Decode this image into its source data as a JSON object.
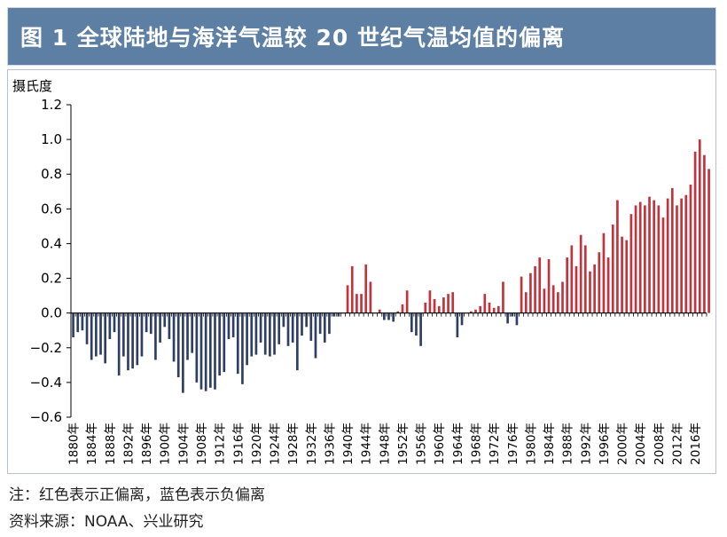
{
  "figure": {
    "title": "图 1   全球陆地与海洋气温较 20 世纪气温均值的偏离",
    "note": "注：红色表示正偏离，蓝色表示负偏离",
    "source": "资料来源：NOAA、兴业研究"
  },
  "colors": {
    "positive": "#c0353d",
    "negative": "#2f3f63",
    "axis": "#000000",
    "header": "#5d7fa3"
  },
  "chart_data": {
    "type": "bar",
    "title": "全球陆地与海洋气温较 20 世纪气温均值的偏离",
    "ylabel": "摄氏度",
    "xlabel": "",
    "ylim": [
      -0.6,
      1.2
    ],
    "yticks": [
      1.2,
      1.0,
      0.8,
      0.6,
      0.4,
      0.2,
      0.0,
      -0.2,
      -0.4,
      -0.6
    ],
    "ytick_labels": [
      "1.2",
      "1.0",
      "0.8",
      "0.6",
      "0.4",
      "0.2",
      "0.0",
      "−0.2",
      "−0.4",
      "−0.6"
    ],
    "xtick_labels": [
      "1880年",
      "1884年",
      "1888年",
      "1892年",
      "1896年",
      "1900年",
      "1904年",
      "1908年",
      "1912年",
      "1916年",
      "1920年",
      "1924年",
      "1928年",
      "1932年",
      "1936年",
      "1940年",
      "1944年",
      "1948年",
      "1952年",
      "1956年",
      "1960年",
      "1964年",
      "1968年",
      "1972年",
      "1976年",
      "1980年",
      "1984年",
      "1988年",
      "1992年",
      "1996年",
      "2000年",
      "2004年",
      "2008年",
      "2012年",
      "2016年"
    ],
    "start_year": 1880,
    "end_year": 2018,
    "values": [
      -0.14,
      -0.11,
      -0.1,
      -0.18,
      -0.27,
      -0.25,
      -0.24,
      -0.29,
      -0.15,
      -0.11,
      -0.36,
      -0.25,
      -0.33,
      -0.32,
      -0.3,
      -0.25,
      -0.11,
      -0.12,
      -0.27,
      -0.17,
      -0.08,
      -0.15,
      -0.28,
      -0.37,
      -0.46,
      -0.27,
      -0.23,
      -0.4,
      -0.44,
      -0.45,
      -0.43,
      -0.44,
      -0.36,
      -0.34,
      -0.15,
      -0.14,
      -0.35,
      -0.41,
      -0.3,
      -0.25,
      -0.24,
      -0.17,
      -0.24,
      -0.25,
      -0.24,
      -0.18,
      -0.08,
      -0.19,
      -0.17,
      -0.33,
      -0.13,
      -0.08,
      -0.16,
      -0.26,
      -0.12,
      -0.17,
      -0.12,
      -0.02,
      -0.02,
      0.0,
      0.16,
      0.27,
      0.11,
      0.11,
      0.28,
      0.18,
      0.0,
      0.02,
      -0.04,
      -0.04,
      -0.05,
      0.01,
      0.05,
      0.13,
      -0.11,
      -0.13,
      -0.19,
      0.06,
      0.13,
      0.08,
      0.04,
      0.09,
      0.11,
      0.12,
      -0.14,
      -0.07,
      0.0,
      0.01,
      0.02,
      0.04,
      0.11,
      0.06,
      0.03,
      0.04,
      0.18,
      -0.06,
      -0.02,
      -0.07,
      0.21,
      0.12,
      0.23,
      0.27,
      0.32,
      0.14,
      0.31,
      0.16,
      0.12,
      0.18,
      0.32,
      0.39,
      0.27,
      0.45,
      0.39,
      0.24,
      0.28,
      0.35,
      0.46,
      0.32,
      0.51,
      0.65,
      0.44,
      0.42,
      0.57,
      0.62,
      0.64,
      0.62,
      0.67,
      0.65,
      0.62,
      0.55,
      0.66,
      0.72,
      0.62,
      0.66,
      0.68,
      0.74,
      0.93,
      1.0,
      0.91,
      0.83
    ]
  }
}
